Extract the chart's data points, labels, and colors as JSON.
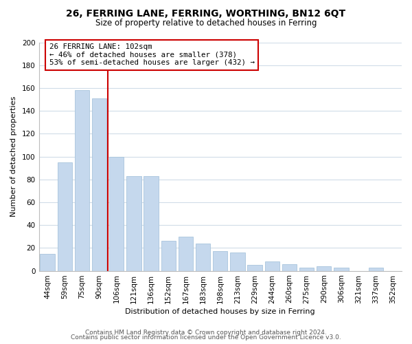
{
  "title": "26, FERRING LANE, FERRING, WORTHING, BN12 6QT",
  "subtitle": "Size of property relative to detached houses in Ferring",
  "xlabel": "Distribution of detached houses by size in Ferring",
  "ylabel": "Number of detached properties",
  "bar_color": "#c5d8ed",
  "bar_edge_color": "#a8c4dc",
  "categories": [
    "44sqm",
    "59sqm",
    "75sqm",
    "90sqm",
    "106sqm",
    "121sqm",
    "136sqm",
    "152sqm",
    "167sqm",
    "183sqm",
    "198sqm",
    "213sqm",
    "229sqm",
    "244sqm",
    "260sqm",
    "275sqm",
    "290sqm",
    "306sqm",
    "321sqm",
    "337sqm",
    "352sqm"
  ],
  "values": [
    15,
    95,
    158,
    151,
    100,
    83,
    83,
    26,
    30,
    24,
    17,
    16,
    5,
    8,
    6,
    3,
    4,
    3,
    0,
    3,
    0
  ],
  "vline_x_idx": 3.5,
  "vline_color": "#cc0000",
  "annotation_line1": "26 FERRING LANE: 102sqm",
  "annotation_line2": "← 46% of detached houses are smaller (378)",
  "annotation_line3": "53% of semi-detached houses are larger (432) →",
  "annotation_box_color": "#ffffff",
  "annotation_box_edge": "#cc0000",
  "ylim": [
    0,
    200
  ],
  "yticks": [
    0,
    20,
    40,
    60,
    80,
    100,
    120,
    140,
    160,
    180,
    200
  ],
  "footer1": "Contains HM Land Registry data © Crown copyright and database right 2024.",
  "footer2": "Contains public sector information licensed under the Open Government Licence v3.0.",
  "background_color": "#ffffff",
  "grid_color": "#d0dce8",
  "title_fontsize": 10,
  "subtitle_fontsize": 8.5,
  "axis_label_fontsize": 8,
  "tick_fontsize": 7.5,
  "annotation_fontsize": 7.8,
  "footer_fontsize": 6.5
}
